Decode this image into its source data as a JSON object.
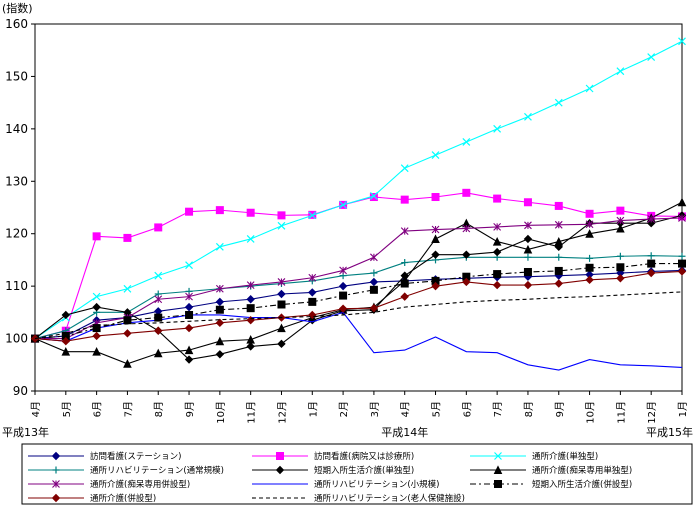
{
  "chart_data": {
    "type": "line",
    "title": "",
    "ylabel": "(指数)",
    "xlabel": "",
    "ylim": [
      90,
      160
    ],
    "yticks": [
      90,
      100,
      110,
      120,
      130,
      140,
      150,
      160
    ],
    "categories": [
      "4月",
      "5月",
      "6月",
      "7月",
      "8月",
      "9月",
      "10月",
      "11月",
      "12月",
      "1月",
      "2月",
      "3月",
      "4月",
      "5月",
      "6月",
      "7月",
      "8月",
      "9月",
      "10月",
      "11月",
      "12月",
      "1月"
    ],
    "year_labels": [
      {
        "index": 0,
        "text": "平成13年"
      },
      {
        "index": 12,
        "text": "平成14年"
      },
      {
        "index": 21,
        "text": "平成15年"
      }
    ],
    "series": [
      {
        "name": "訪問看護(ステーション)",
        "color": "#000080",
        "marker": "diamond",
        "dash": "solid",
        "values": [
          100,
          100.5,
          103.5,
          104,
          105.2,
          106,
          107,
          107.5,
          108.5,
          108.8,
          110,
          110.8,
          111,
          111.3,
          111.5,
          111.7,
          111.8,
          112,
          112.2,
          112.5,
          112.8,
          113
        ]
      },
      {
        "name": "訪問看護(病院又は診療所)",
        "color": "#ff00ff",
        "marker": "square",
        "dash": "solid",
        "values": [
          100,
          101.5,
          119.5,
          119.2,
          121.2,
          124.2,
          124.5,
          124,
          123.5,
          123.6,
          125.5,
          127,
          126.5,
          127,
          127.8,
          126.7,
          126,
          125.3,
          123.8,
          124.4,
          123.4,
          123.3
        ]
      },
      {
        "name": "通所介護(単独型)",
        "color": "#00ffff",
        "marker": "x",
        "dash": "solid",
        "values": [
          100,
          104,
          108,
          109.5,
          112,
          114,
          117.5,
          119,
          121.5,
          123.5,
          125.5,
          127.2,
          132.5,
          135,
          137.5,
          140,
          142.3,
          145,
          147.7,
          151,
          153.7,
          156.7
        ]
      },
      {
        "name": "通所リハビリテーション(通常規模)",
        "color": "#008080",
        "marker": "plus",
        "dash": "solid",
        "values": [
          100,
          101.5,
          105,
          105,
          108.5,
          109,
          109.5,
          110,
          110.5,
          111,
          112,
          112.5,
          114.5,
          115,
          115.5,
          115.5,
          115.5,
          115.5,
          115.3,
          115.7,
          115.8,
          115.7
        ]
      },
      {
        "name": "短期入所生活介護(単独型)",
        "color": "#000000",
        "marker": "diamond",
        "dash": "solid",
        "values": [
          100,
          104.5,
          106,
          105,
          101.5,
          96,
          97,
          98.5,
          99,
          103.5,
          105.3,
          105.5,
          112,
          116,
          116,
          116.5,
          119,
          117.5,
          122,
          122,
          122,
          123.5
        ]
      },
      {
        "name": "通所介護(痴呆専用単独型)",
        "color": "#000000",
        "marker": "triangle",
        "dash": "solid",
        "values": [
          100,
          97.5,
          97.5,
          95.2,
          97.2,
          97.8,
          99.5,
          99.8,
          102,
          104,
          105.5,
          106,
          111,
          119,
          122,
          118.5,
          117,
          118.5,
          120,
          121,
          123,
          126
        ]
      },
      {
        "name": "通所介護(痴呆専用併設型)",
        "color": "#800080",
        "marker": "asterisk",
        "dash": "solid",
        "values": [
          100,
          100,
          103,
          104,
          107.5,
          108,
          109.5,
          110.2,
          110.8,
          111.6,
          113,
          115.5,
          120.5,
          120.8,
          121,
          121.3,
          121.6,
          121.7,
          121.8,
          122.5,
          122.8,
          123
        ]
      },
      {
        "name": "通所リハビリテーション(小規模)",
        "color": "#0000ff",
        "marker": "none",
        "dash": "solid",
        "values": [
          100,
          99.5,
          102,
          103,
          103.5,
          104.5,
          104.5,
          104,
          104,
          103.2,
          105,
          97.3,
          97.8,
          100.3,
          97.5,
          97.3,
          95,
          94,
          96,
          95,
          94.8,
          94.5
        ]
      },
      {
        "name": "短期入所生活介護(併設型)",
        "color": "#000000",
        "marker": "square",
        "dash": "dashdot",
        "values": [
          100,
          100.5,
          102,
          103.5,
          104,
          104.5,
          105.5,
          105.8,
          106.5,
          107,
          108.2,
          109.3,
          110.5,
          111,
          111.8,
          112.3,
          112.7,
          112.9,
          113.5,
          113.6,
          114.3,
          114.3
        ]
      },
      {
        "name": "通所介護(併設型)",
        "color": "#800000",
        "marker": "diamond",
        "dash": "solid",
        "values": [
          100,
          99.5,
          100.5,
          101,
          101.5,
          102,
          103,
          103.5,
          104,
          104.5,
          105.7,
          105.8,
          108,
          110,
          110.8,
          110.2,
          110.2,
          110.5,
          111.2,
          111.5,
          112.5,
          112.8
        ]
      },
      {
        "name": "通所リハビリテーション(老人保健施設)",
        "color": "#000000",
        "marker": "none",
        "dash": "dashed",
        "values": [
          100,
          101,
          102.5,
          102.8,
          103,
          103.3,
          103.6,
          103.8,
          104,
          104.2,
          104.5,
          105,
          106,
          106.5,
          107,
          107.3,
          107.5,
          107.8,
          108,
          108.3,
          108.6,
          108.9
        ]
      }
    ],
    "legend_position": "bottom"
  }
}
